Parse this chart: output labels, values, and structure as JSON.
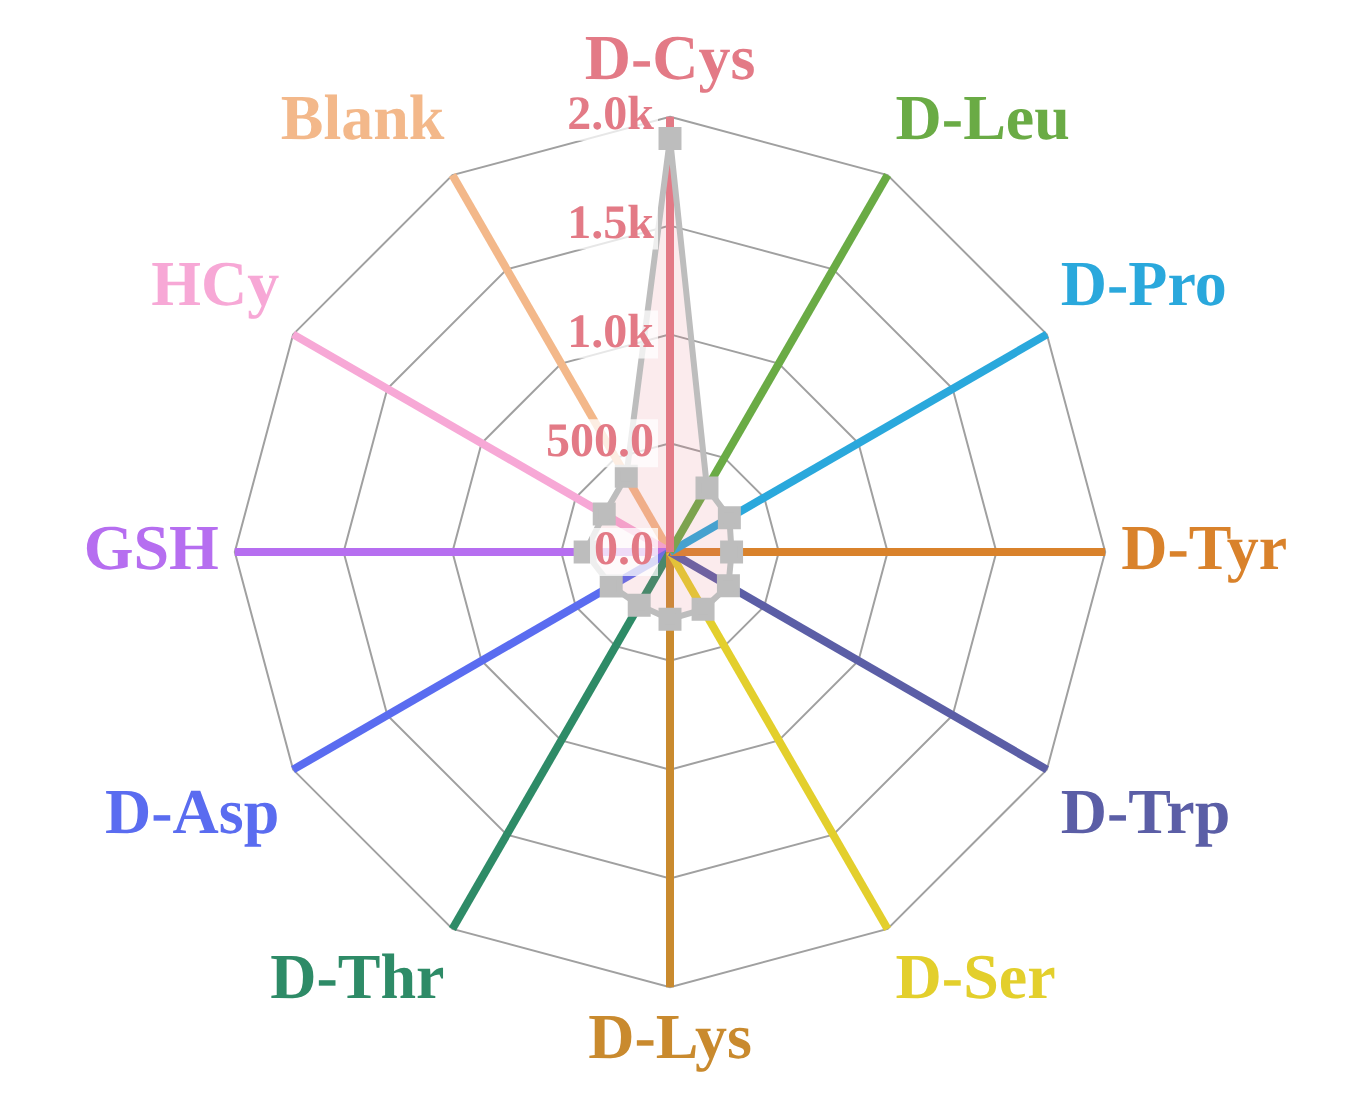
{
  "chart_data": {
    "type": "radar",
    "categories": [
      "D-Cys",
      "D-Leu",
      "D-Pro",
      "D-Tyr",
      "D-Trp",
      "D-Ser",
      "D-Lys",
      "D-Thr",
      "D-Asp",
      "GSH",
      "HCy",
      "Blank"
    ],
    "colors": [
      "#e37a86",
      "#6aab45",
      "#2aa8dc",
      "#d9822b",
      "#5b5ea6",
      "#e3cf2c",
      "#c98a2e",
      "#2e8b67",
      "#5a6cf0",
      "#b66ef0",
      "#f7a8d6",
      "#f3b88a"
    ],
    "series": [
      {
        "color": "#bdbdbd",
        "values": [
          1900,
          340,
          315,
          283,
          310,
          304,
          309,
          283,
          312,
          390,
          349,
          402
        ]
      }
    ],
    "ylim": [
      0,
      2000
    ],
    "yticks": [
      {
        "value": 0,
        "label": "0.0"
      },
      {
        "value": 500,
        "label": "500.0"
      },
      {
        "value": 1000,
        "label": "1.0k"
      },
      {
        "value": 1500,
        "label": "1.5k"
      },
      {
        "value": 2000,
        "label": "2.0k"
      }
    ],
    "grid": true,
    "marker": "square",
    "legend": false
  }
}
